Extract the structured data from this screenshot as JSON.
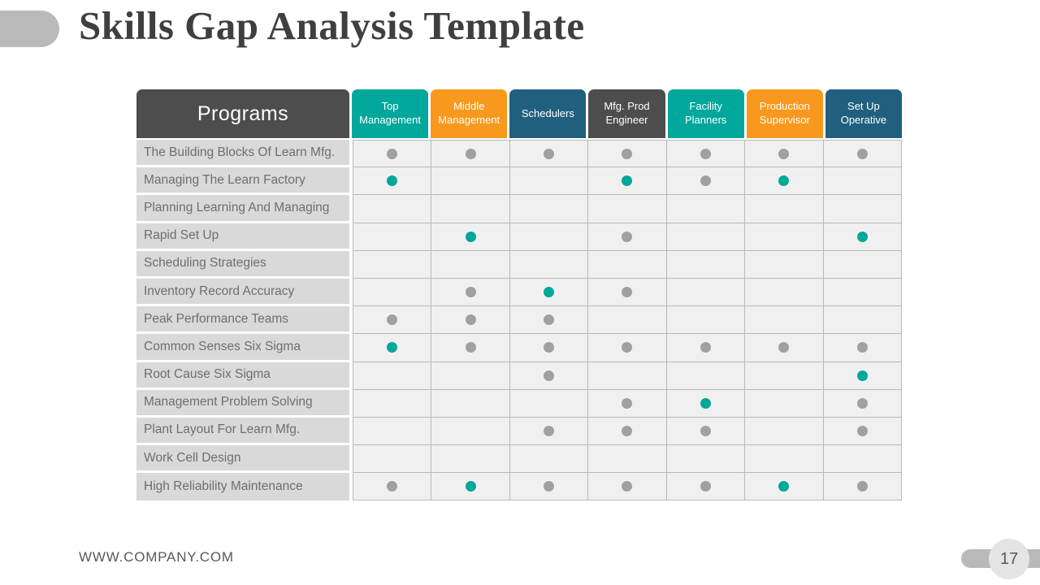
{
  "slide": {
    "title": "Skills Gap Analysis Template",
    "footer_url": "WWW.COMPANY.COM",
    "page_number": "17"
  },
  "colors": {
    "teal": "#00a79b",
    "orange": "#f8981d",
    "slate": "#20607e",
    "dark_gray": "#4d4d4d",
    "gray_dot": "#a0a0a0"
  },
  "table": {
    "header": {
      "programs_label": "Programs",
      "columns": [
        {
          "label": "Top Management",
          "color": "#00a79b"
        },
        {
          "label": "Middle Management",
          "color": "#f8981d"
        },
        {
          "label": "Schedulers",
          "color": "#20607e"
        },
        {
          "label": "Mfg. Prod Engineer",
          "color": "#4d4d4d"
        },
        {
          "label": "Facility Planners",
          "color": "#00a79b"
        },
        {
          "label": "Production Supervisor",
          "color": "#f8981d"
        },
        {
          "label": "Set Up Operative",
          "color": "#20607e"
        }
      ]
    },
    "dot_colors": {
      "teal": "#00a79b",
      "gray": "#a0a0a0"
    },
    "rows": [
      {
        "program": "The Building Blocks Of Learn Mfg.",
        "cells": [
          "gray",
          "gray",
          "gray",
          "gray",
          "gray",
          "gray",
          "gray"
        ]
      },
      {
        "program": "Managing The Learn Factory",
        "cells": [
          "teal",
          "",
          "",
          "teal",
          "gray",
          "teal",
          ""
        ]
      },
      {
        "program": "Planning Learning And Managing",
        "cells": [
          "",
          "",
          "",
          "",
          "",
          "",
          ""
        ]
      },
      {
        "program": "Rapid Set Up",
        "cells": [
          "",
          "teal",
          "",
          "gray",
          "",
          "",
          "teal"
        ]
      },
      {
        "program": "Scheduling Strategies",
        "cells": [
          "",
          "",
          "",
          "",
          "",
          "",
          ""
        ]
      },
      {
        "program": "Inventory  Record Accuracy",
        "cells": [
          "",
          "gray",
          "teal",
          "gray",
          "",
          "",
          ""
        ]
      },
      {
        "program": "Peak Performance Teams",
        "cells": [
          "gray",
          "gray",
          "gray",
          "",
          "",
          "",
          ""
        ]
      },
      {
        "program": "Common Senses Six Sigma",
        "cells": [
          "teal",
          "gray",
          "gray",
          "gray",
          "gray",
          "gray",
          "gray"
        ]
      },
      {
        "program": "Root Cause Six Sigma",
        "cells": [
          "",
          "",
          "gray",
          "",
          "",
          "",
          "teal"
        ]
      },
      {
        "program": "Management Problem Solving",
        "cells": [
          "",
          "",
          "",
          "gray",
          "teal",
          "",
          "gray"
        ]
      },
      {
        "program": "Plant Layout For Learn Mfg.",
        "cells": [
          "",
          "",
          "gray",
          "gray",
          "gray",
          "",
          "gray"
        ]
      },
      {
        "program": "Work Cell Design",
        "cells": [
          "",
          "",
          "",
          "",
          "",
          "",
          ""
        ]
      },
      {
        "program": "High Reliability Maintenance",
        "cells": [
          "gray",
          "teal",
          "gray",
          "gray",
          "gray",
          "teal",
          "gray"
        ]
      }
    ]
  }
}
